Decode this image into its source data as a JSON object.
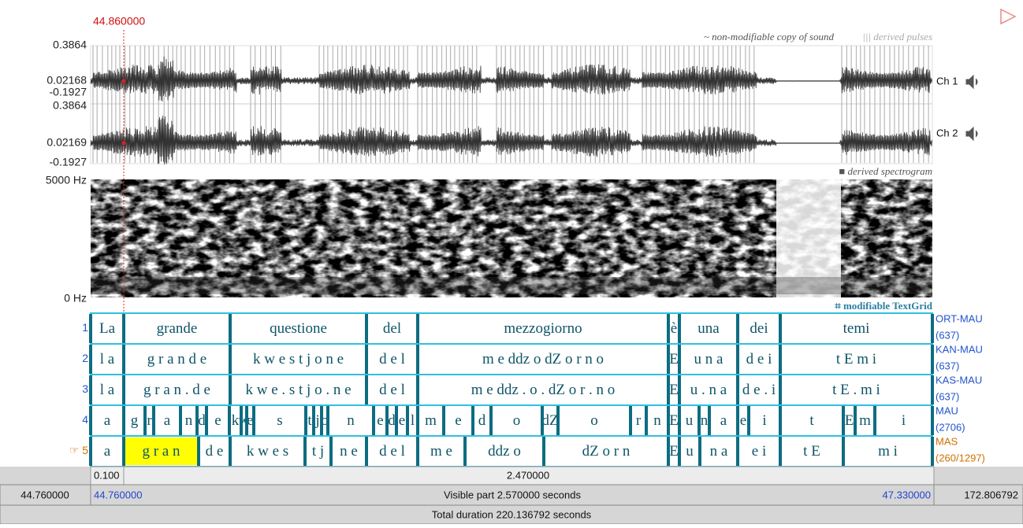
{
  "cursor": "44.860000",
  "channels": [
    {
      "max": "0.3864",
      "mid": "0.02168",
      "min": "-0.1927",
      "name": "Ch 1"
    },
    {
      "max": "0.3864",
      "mid": "0.02169",
      "min": "-0.1927",
      "name": "Ch 2"
    }
  ],
  "legend": {
    "sound": "~ non-modifiable copy of sound",
    "pulses": "||| derived pulses",
    "spectrogram": "■ derived spectrogram",
    "textgrid": "⌗ modifiable TextGrid"
  },
  "spectrogram": {
    "top": "5000 Hz",
    "bottom": "0 Hz"
  },
  "tiers": [
    {
      "number": "1",
      "name": "ORT-MAU",
      "count": "(637)",
      "intervals": [
        "La",
        "grande",
        "questione",
        "del",
        "mezzogiorno",
        "è",
        "una",
        "dei",
        "temi"
      ]
    },
    {
      "number": "2",
      "name": "KAN-MAU",
      "count": "(637)",
      "intervals": [
        "l a",
        "g r a n d e",
        "k w e s t j o n e",
        "d e l",
        "m e ddz o dZ o r n o",
        "E",
        "u n a",
        "d e i",
        "t E m i"
      ]
    },
    {
      "number": "3",
      "name": "KAS-MAU",
      "count": "(637)",
      "intervals": [
        "l a",
        "g r a n . d e",
        "k w e . s t j o . n e",
        "d e l",
        "m e ddz . o . dZ o r . n o",
        "E",
        "u . n a",
        "d e . i",
        "t E . m i"
      ]
    },
    {
      "number": "4",
      "name": "MAU",
      "count": "(2706)",
      "intervals": [
        "a",
        "g",
        "r",
        "a",
        "n",
        "d",
        "e",
        "k",
        "w",
        "e",
        "s",
        "t",
        "j",
        "o",
        "n",
        "e",
        "d",
        "e",
        "l",
        "m",
        "e",
        "d",
        "o",
        "dZ",
        "o",
        "r",
        "n",
        "E",
        "u",
        "n",
        "a",
        "e",
        "i",
        "t",
        "E",
        "m",
        "i"
      ]
    },
    {
      "number": "☞ 5",
      "name": "MAS",
      "count": "(260/1297)",
      "intervals": [
        "a",
        "g r a n",
        "d e",
        "k w e s",
        "t j",
        "n e",
        "d e l",
        "m e",
        "ddz o",
        "dZ o r n",
        "E",
        "u",
        "n a",
        "e i",
        "t E",
        "m i"
      ]
    }
  ],
  "selection_bar": {
    "left": "0.100",
    "main": "2.470000"
  },
  "visible_bar": {
    "before": "44.760000",
    "start": "44.760000",
    "label": "Visible part 2.570000 seconds",
    "end": "47.330000",
    "after": "172.806792"
  },
  "total": "Total duration 220.136792 seconds"
}
